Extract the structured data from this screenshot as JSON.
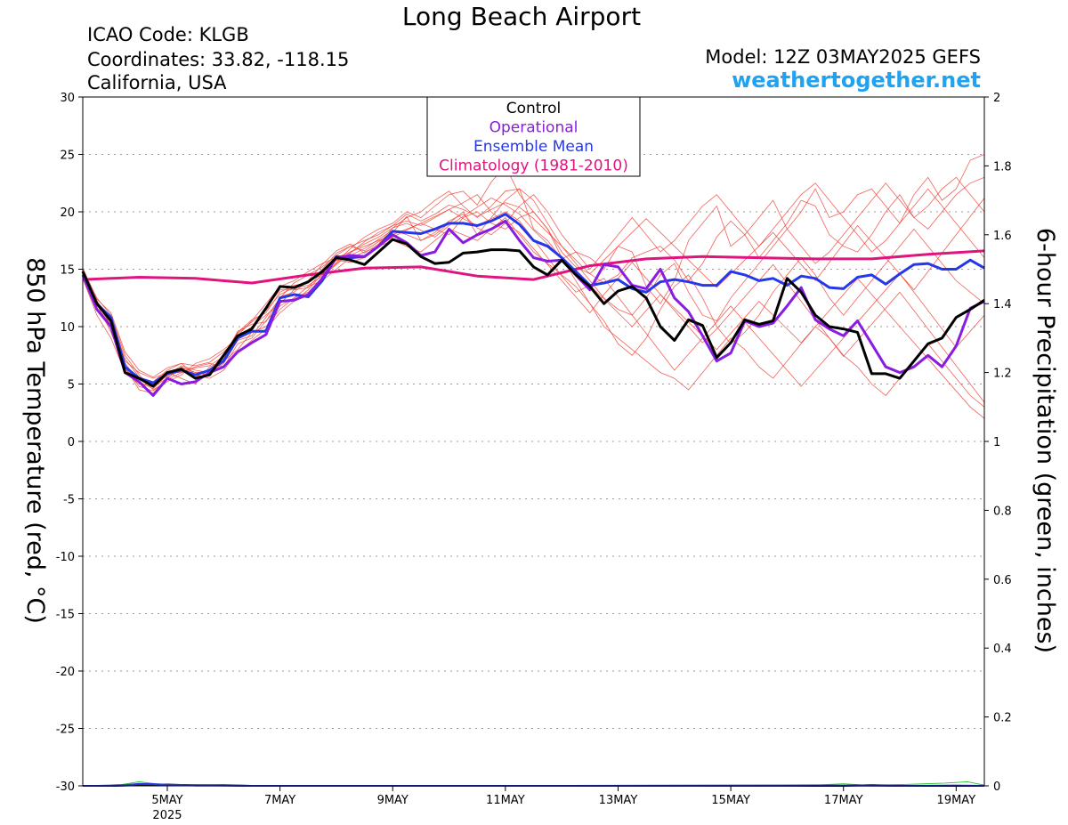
{
  "header": {
    "title": "Long Beach Airport",
    "icao": "ICAO Code: KLGB",
    "coordinates": "Coordinates: 33.82, -118.15",
    "location": "California, USA",
    "model": "Model: 12Z 03MAY2025 GEFS",
    "brand": "weathertogether.net"
  },
  "chart_data": {
    "type": "line",
    "ylabel": "850 hPa Temperature (red, °C)",
    "y2label": "6-hour Precipitation (green, inches)",
    "ylim": [
      -30,
      30
    ],
    "y2lim": [
      0,
      2
    ],
    "yticks": [
      "30",
      "25",
      "20",
      "15",
      "10",
      "5",
      "0",
      "-5",
      "-10",
      "-15",
      "-20",
      "-25",
      "-30"
    ],
    "y2ticks": [
      "2",
      "1.8",
      "1.6",
      "1.4",
      "1.2",
      "1",
      "0.8",
      "0.6",
      "0.4",
      "0.2",
      "0"
    ],
    "x_range_days": [
      3.5,
      19.5
    ],
    "x_ticks": [
      {
        "day": 5,
        "label": "5MAY",
        "sublabel": "2025"
      },
      {
        "day": 7,
        "label": "7MAY",
        "sublabel": ""
      },
      {
        "day": 9,
        "label": "9MAY",
        "sublabel": ""
      },
      {
        "day": 11,
        "label": "11MAY",
        "sublabel": ""
      },
      {
        "day": 13,
        "label": "13MAY",
        "sublabel": ""
      },
      {
        "day": 15,
        "label": "15MAY",
        "sublabel": ""
      },
      {
        "day": 17,
        "label": "17MAY",
        "sublabel": ""
      },
      {
        "day": 19,
        "label": "19MAY",
        "sublabel": ""
      }
    ],
    "grid": true,
    "legend": {
      "placement": "top-center",
      "entries": [
        {
          "label": "Control",
          "color": "#000000"
        },
        {
          "label": "Operational",
          "color": "#8a1be0"
        },
        {
          "label": "Ensemble Mean",
          "color": "#2438e8"
        },
        {
          "label": "Climatology (1981-2010)",
          "color": "#e0147f"
        }
      ]
    },
    "series": [
      {
        "name": "Climatology (1981-2010)",
        "color": "#e0147f",
        "width": 3,
        "x": [
          3.5,
          4.5,
          5.5,
          6.5,
          7.5,
          8.5,
          9.5,
          10.5,
          11.5,
          12.5,
          13.5,
          14.5,
          15.5,
          16.5,
          17.5,
          18.5,
          19.5
        ],
        "y": [
          14.1,
          14.3,
          14.2,
          13.8,
          14.5,
          15.1,
          15.2,
          14.4,
          14.1,
          15.3,
          15.9,
          16.1,
          16.0,
          15.9,
          15.9,
          16.3,
          16.6
        ]
      },
      {
        "name": "Ensemble Mean",
        "color": "#2438e8",
        "width": 3,
        "x": [
          3.5,
          3.75,
          4.0,
          4.25,
          4.5,
          4.75,
          5.0,
          5.25,
          5.5,
          5.75,
          6.0,
          6.25,
          6.5,
          6.75,
          7.0,
          7.25,
          7.5,
          7.75,
          8.0,
          8.25,
          8.5,
          8.75,
          9.0,
          9.25,
          9.5,
          9.75,
          10.0,
          10.25,
          10.5,
          10.75,
          11.0,
          11.25,
          11.5,
          11.75,
          12.0,
          12.25,
          12.5,
          12.75,
          13.0,
          13.25,
          13.5,
          13.75,
          14.0,
          14.25,
          14.5,
          14.75,
          15.0,
          15.25,
          15.5,
          15.75,
          16.0,
          16.25,
          16.5,
          16.75,
          17.0,
          17.25,
          17.5,
          17.75,
          18.0,
          18.25,
          18.5,
          18.75,
          19.0,
          19.25,
          19.5
        ],
        "y": [
          14.8,
          12.0,
          10.8,
          6.5,
          5.5,
          5.1,
          5.9,
          6.2,
          5.8,
          6.2,
          7.0,
          9.0,
          9.6,
          9.6,
          12.5,
          12.8,
          12.6,
          14.0,
          16.1,
          16.0,
          16.1,
          17.0,
          18.3,
          18.2,
          18.1,
          18.5,
          19.0,
          19.0,
          18.8,
          19.2,
          19.8,
          18.9,
          17.5,
          17.0,
          16.0,
          14.8,
          13.6,
          13.8,
          14.1,
          13.3,
          13.0,
          13.9,
          14.1,
          13.9,
          13.6,
          13.6,
          14.8,
          14.5,
          14.0,
          14.2,
          13.6,
          14.4,
          14.2,
          13.4,
          13.3,
          14.3,
          14.5,
          13.7,
          14.6,
          15.4,
          15.5,
          15.0,
          15.0,
          15.8,
          15.1
        ]
      },
      {
        "name": "Operational",
        "color": "#8a1be0",
        "width": 3,
        "x": [
          3.5,
          3.75,
          4.0,
          4.25,
          4.5,
          4.75,
          5.0,
          5.25,
          5.5,
          5.75,
          6.0,
          6.25,
          6.5,
          6.75,
          7.0,
          7.25,
          7.5,
          7.75,
          8.0,
          8.25,
          8.5,
          8.75,
          9.0,
          9.25,
          9.5,
          9.75,
          10.0,
          10.25,
          10.5,
          10.75,
          11.0,
          11.25,
          11.5,
          11.75,
          12.0,
          12.25,
          12.5,
          12.75,
          13.0,
          13.25,
          13.5,
          13.75,
          14.0,
          14.25,
          14.5,
          14.75,
          15.0,
          15.25,
          15.5,
          15.75,
          16.0,
          16.25,
          16.5,
          16.75,
          17.0,
          17.25,
          17.5,
          17.75,
          18.0,
          18.25,
          18.5,
          18.75,
          19.0,
          19.25,
          19.5
        ],
        "y": [
          14.5,
          11.5,
          10.0,
          6.0,
          5.2,
          4.0,
          5.5,
          5.0,
          5.2,
          6.0,
          6.5,
          7.8,
          8.6,
          9.3,
          12.2,
          12.3,
          12.8,
          14.2,
          16.0,
          16.2,
          16.1,
          17.0,
          18.0,
          17.3,
          16.2,
          16.5,
          18.5,
          17.3,
          18.0,
          18.5,
          19.2,
          17.5,
          16.0,
          15.7,
          15.8,
          14.5,
          13.2,
          15.4,
          15.2,
          13.6,
          13.3,
          15.0,
          12.5,
          11.3,
          9.2,
          7.0,
          7.7,
          10.5,
          10.0,
          10.3,
          11.8,
          13.4,
          10.6,
          9.8,
          9.2,
          10.5,
          8.5,
          6.5,
          6.0,
          6.5,
          7.5,
          6.5,
          8.3,
          11.6,
          12.2
        ]
      },
      {
        "name": "Control",
        "color": "#000000",
        "width": 3,
        "x": [
          3.5,
          3.75,
          4.0,
          4.25,
          4.5,
          4.75,
          5.0,
          5.25,
          5.5,
          5.75,
          6.0,
          6.25,
          6.5,
          6.75,
          7.0,
          7.25,
          7.5,
          7.75,
          8.0,
          8.25,
          8.5,
          8.75,
          9.0,
          9.25,
          9.5,
          9.75,
          10.0,
          10.25,
          10.5,
          10.75,
          11.0,
          11.25,
          11.5,
          11.75,
          12.0,
          12.25,
          12.5,
          12.75,
          13.0,
          13.25,
          13.5,
          13.75,
          14.0,
          14.25,
          14.5,
          14.75,
          15.0,
          15.25,
          15.5,
          15.75,
          16.0,
          16.25,
          16.5,
          16.75,
          17.0,
          17.25,
          17.5,
          17.75,
          18.0,
          18.25,
          18.5,
          18.75,
          19.0,
          19.25,
          19.5
        ],
        "y": [
          14.8,
          12.0,
          10.5,
          6.0,
          5.5,
          4.8,
          6.0,
          6.3,
          5.5,
          5.8,
          7.5,
          9.2,
          9.8,
          11.6,
          13.5,
          13.4,
          13.9,
          14.8,
          16.0,
          15.8,
          15.4,
          16.5,
          17.6,
          17.2,
          16.1,
          15.5,
          15.6,
          16.4,
          16.5,
          16.7,
          16.7,
          16.6,
          15.2,
          14.5,
          15.8,
          14.5,
          13.5,
          12.0,
          13.1,
          13.5,
          12.5,
          10.0,
          8.8,
          10.6,
          10.1,
          7.3,
          8.6,
          10.6,
          10.2,
          10.5,
          14.2,
          13.0,
          11.0,
          10.0,
          9.8,
          9.5,
          5.9,
          5.9,
          5.5,
          7.0,
          8.5,
          9.0,
          10.8,
          11.5,
          12.3
        ]
      },
      {
        "name": "Control precipitation",
        "color": "#000000",
        "width": 2,
        "axis": "y2",
        "x": [
          3.5,
          4.0,
          4.5,
          5.0,
          5.5,
          6.0,
          6.5,
          7.0,
          8.0,
          10.0,
          12.0,
          14.0,
          16.0,
          17.0,
          17.5,
          18.0,
          19.0,
          19.5
        ],
        "y": [
          0,
          0,
          0.002,
          0.004,
          0.001,
          0.001,
          0,
          0,
          0,
          0,
          0,
          0,
          0,
          0,
          0.002,
          0,
          0,
          0
        ]
      },
      {
        "name": "Ensemble mean precipitation",
        "color": "#2438e8",
        "width": 2,
        "axis": "y2",
        "x": [
          3.5,
          4.0,
          4.25,
          4.5,
          4.75,
          5.0,
          5.5,
          6.0,
          6.5,
          7.0,
          8.0,
          10.0,
          12.0,
          14.0,
          16.0,
          16.5,
          17.0,
          18.0,
          19.0,
          19.5
        ],
        "y": [
          0,
          0,
          0.002,
          0.006,
          0.005,
          0.003,
          0.002,
          0.001,
          0,
          0,
          0,
          0,
          0,
          0,
          0,
          0.001,
          0.001,
          0,
          0.001,
          0
        ]
      }
    ],
    "members": [
      [
        14.8,
        12.0,
        9.5,
        6.5,
        4.5,
        4.2,
        5.6,
        6.2,
        5.6,
        6.3,
        7.2,
        9.5,
        10.6,
        11.2,
        13.0,
        13.6,
        13.8,
        15.0,
        16.4,
        17.0,
        16.6,
        17.4,
        18.2,
        19.6,
        17.5,
        18.0,
        19.0,
        20.0,
        18.0,
        19.5,
        21.0,
        22.0,
        18.5,
        17.5,
        15.9,
        16.5,
        16.0,
        15.0,
        17.0,
        16.5,
        13.5,
        12.0,
        14.0,
        17.5,
        19.0,
        20.5,
        17.0,
        18.0,
        19.5,
        21.0,
        18.5,
        20.0,
        22.0,
        19.5,
        20.0,
        21.5,
        22.0,
        20.5,
        19.0,
        21.5,
        23.0,
        21.0,
        22.0,
        24.5,
        25.0
      ],
      [
        14.5,
        11.5,
        10.0,
        6.2,
        5.5,
        5.0,
        6.0,
        6.0,
        6.5,
        6.8,
        6.5,
        8.5,
        9.0,
        10.5,
        11.8,
        12.5,
        13.0,
        14.2,
        15.6,
        16.8,
        17.8,
        18.5,
        19.0,
        20.0,
        19.5,
        20.5,
        21.5,
        21.8,
        20.6,
        22.6,
        24.0,
        21.5,
        20.0,
        18.5,
        16.5,
        15.2,
        14.6,
        13.8,
        14.5,
        16.0,
        16.5,
        17.0,
        15.8,
        14.0,
        15.5,
        17.8,
        19.2,
        18.0,
        16.0,
        17.5,
        19.0,
        21.0,
        20.5,
        18.0,
        17.0,
        16.5,
        18.0,
        20.0,
        21.5,
        19.5,
        18.5,
        20.0,
        21.5,
        22.5,
        23.0
      ],
      [
        15.0,
        12.5,
        11.0,
        7.5,
        5.8,
        4.5,
        5.2,
        5.8,
        6.8,
        7.2,
        8.0,
        9.0,
        10.0,
        11.0,
        12.0,
        13.2,
        14.0,
        14.5,
        15.5,
        16.5,
        17.2,
        17.8,
        18.6,
        19.5,
        20.0,
        21.0,
        21.8,
        20.5,
        19.5,
        20.5,
        21.8,
        22.0,
        21.0,
        19.0,
        17.0,
        15.5,
        14.0,
        12.5,
        11.5,
        11.0,
        12.5,
        14.5,
        15.5,
        13.0,
        11.0,
        10.5,
        12.5,
        14.0,
        15.5,
        17.0,
        18.5,
        17.0,
        15.5,
        16.5,
        18.0,
        19.5,
        21.0,
        22.5,
        21.0,
        19.5,
        20.5,
        22.0,
        23.0,
        21.5,
        20.0
      ],
      [
        14.2,
        11.0,
        9.0,
        6.0,
        5.0,
        4.8,
        5.5,
        6.5,
        6.0,
        5.8,
        7.5,
        9.2,
        10.5,
        12.0,
        13.5,
        14.0,
        14.8,
        15.5,
        16.0,
        16.5,
        17.0,
        17.5,
        18.0,
        18.5,
        19.0,
        18.5,
        18.0,
        19.5,
        20.0,
        19.0,
        18.5,
        19.5,
        20.0,
        18.5,
        16.0,
        14.0,
        12.0,
        10.5,
        8.5,
        7.5,
        9.0,
        11.5,
        13.5,
        14.5,
        12.5,
        10.0,
        8.5,
        9.5,
        11.0,
        13.0,
        14.5,
        16.0,
        14.5,
        12.5,
        11.0,
        12.5,
        14.0,
        15.5,
        17.0,
        18.5,
        17.0,
        15.5,
        14.0,
        13.0,
        12.0
      ],
      [
        14.6,
        12.2,
        10.6,
        7.0,
        6.0,
        5.5,
        6.0,
        5.5,
        5.0,
        6.5,
        7.0,
        8.0,
        9.5,
        10.0,
        11.5,
        12.5,
        13.5,
        14.0,
        15.0,
        16.0,
        16.5,
        17.0,
        17.5,
        17.0,
        16.5,
        17.5,
        18.5,
        18.0,
        17.5,
        18.5,
        19.5,
        18.0,
        16.5,
        15.5,
        14.5,
        13.5,
        12.0,
        10.0,
        9.0,
        8.0,
        7.0,
        6.0,
        5.5,
        4.5,
        6.0,
        7.5,
        9.0,
        8.0,
        6.5,
        5.5,
        7.0,
        8.5,
        10.0,
        9.0,
        7.5,
        6.5,
        5.0,
        4.0,
        5.5,
        7.0,
        8.5,
        7.0,
        5.5,
        4.0,
        3.0
      ],
      [
        14.9,
        12.0,
        10.2,
        6.8,
        5.2,
        4.6,
        5.8,
        6.6,
        6.2,
        6.0,
        6.8,
        8.8,
        9.2,
        10.8,
        12.5,
        13.8,
        14.5,
        15.2,
        16.2,
        17.0,
        17.5,
        18.0,
        18.8,
        19.2,
        18.8,
        19.5,
        20.2,
        20.8,
        21.5,
        20.0,
        19.0,
        20.5,
        21.5,
        20.0,
        18.0,
        16.5,
        15.0,
        16.5,
        18.0,
        19.5,
        18.0,
        16.5,
        17.5,
        19.0,
        20.5,
        21.5,
        20.0,
        18.5,
        17.0,
        18.5,
        20.0,
        21.5,
        22.5,
        21.0,
        19.5,
        18.0,
        16.5,
        17.5,
        19.0,
        20.5,
        22.0,
        20.5,
        19.0,
        17.5,
        16.0
      ],
      [
        14.3,
        11.8,
        10.8,
        7.2,
        5.6,
        5.2,
        6.2,
        6.8,
        5.8,
        5.5,
        6.2,
        7.8,
        8.8,
        9.8,
        11.2,
        12.2,
        13.2,
        14.6,
        15.8,
        16.2,
        16.8,
        17.6,
        18.4,
        18.0,
        17.5,
        18.2,
        19.2,
        19.8,
        18.6,
        18.0,
        19.0,
        18.2,
        16.8,
        15.4,
        14.0,
        12.6,
        11.2,
        12.8,
        14.2,
        15.6,
        14.2,
        12.8,
        11.4,
        10.0,
        8.6,
        9.8,
        11.2,
        12.6,
        14.0,
        15.4,
        13.8,
        12.2,
        10.6,
        9.0,
        7.4,
        8.8,
        10.2,
        11.6,
        13.0,
        11.4,
        9.8,
        8.2,
        6.6,
        5.0,
        3.4
      ],
      [
        14.7,
        12.3,
        10.0,
        6.4,
        4.8,
        4.4,
        5.4,
        6.0,
        6.4,
        6.6,
        7.4,
        9.6,
        10.2,
        10.4,
        12.6,
        13.0,
        14.0,
        15.4,
        16.6,
        17.2,
        16.4,
        17.2,
        18.6,
        19.0,
        18.4,
        17.8,
        18.8,
        19.6,
        20.4,
        21.2,
        20.6,
        19.8,
        18.4,
        17.2,
        16.0,
        14.8,
        13.6,
        12.4,
        11.2,
        10.0,
        11.4,
        12.8,
        11.6,
        10.4,
        9.2,
        8.0,
        9.4,
        10.8,
        12.2,
        11.0,
        9.8,
        8.6,
        10.0,
        11.4,
        12.8,
        14.2,
        12.8,
        11.4,
        10.0,
        8.6,
        7.2,
        5.8,
        4.4,
        3.0,
        2.0
      ],
      [
        14.4,
        11.6,
        10.4,
        6.6,
        5.4,
        4.9,
        5.7,
        6.4,
        6.0,
        6.1,
        7.6,
        9.4,
        10.4,
        11.4,
        12.8,
        13.4,
        13.6,
        14.4,
        15.4,
        16.4,
        17.4,
        18.2,
        18.8,
        19.8,
        19.2,
        19.8,
        20.6,
        20.2,
        19.6,
        20.2,
        20.8,
        20.4,
        19.4,
        18.2,
        17.0,
        15.8,
        14.6,
        15.8,
        17.0,
        18.2,
        19.4,
        18.2,
        17.0,
        15.8,
        14.6,
        13.4,
        14.6,
        15.8,
        17.0,
        18.2,
        16.8,
        15.4,
        14.0,
        15.6,
        17.2,
        18.8,
        17.4,
        16.0,
        14.6,
        13.2,
        14.8,
        16.4,
        18.0,
        19.6,
        21.2
      ],
      [
        15.1,
        12.4,
        11.2,
        7.8,
        6.2,
        5.6,
        6.4,
        6.8,
        6.6,
        6.9,
        7.8,
        9.0,
        9.8,
        11.6,
        13.2,
        13.2,
        13.4,
        14.8,
        15.8,
        15.6,
        16.0,
        17.0,
        17.8,
        18.4,
        19.0,
        19.6,
        20.2,
        19.4,
        18.8,
        19.4,
        20.0,
        19.2,
        17.6,
        16.0,
        14.4,
        13.0,
        13.6,
        14.2,
        12.6,
        11.0,
        9.4,
        7.8,
        6.2,
        7.6,
        9.0,
        10.4,
        11.8,
        10.4,
        9.0,
        7.6,
        6.2,
        4.8,
        6.2,
        7.6,
        9.0,
        10.4,
        11.8,
        13.2,
        14.6,
        13.0,
        11.4,
        9.8,
        8.2,
        9.6,
        11.0
      ]
    ]
  }
}
